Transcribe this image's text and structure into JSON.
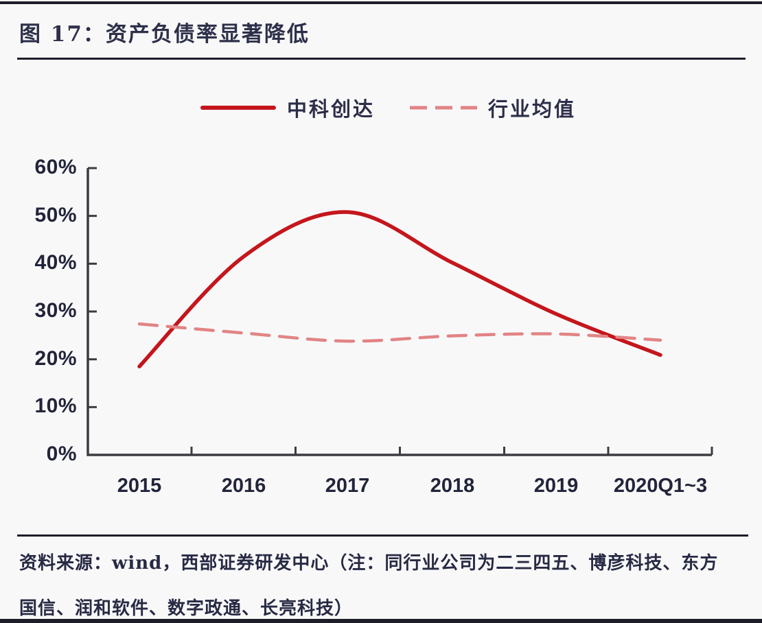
{
  "figure": {
    "title": "图 17：资产负债率显著降低",
    "source_line1": "资料来源：wind，西部证券研发中心（注：同行业公司为二三四五、博彦科技、东方",
    "source_line2": "国信、润和软件、数字政通、长亮科技）"
  },
  "chart_data": {
    "type": "line",
    "categories": [
      "2015",
      "2016",
      "2017",
      "2018",
      "2019",
      "2020Q1~3"
    ],
    "series": [
      {
        "name": "中科创达",
        "style": "solid",
        "color": "#c4161c",
        "values": [
          18.5,
          41.5,
          50.8,
          40.2,
          29.5,
          20.9
        ]
      },
      {
        "name": "行业均值",
        "style": "dashed",
        "color": "#e28484",
        "values": [
          27.4,
          25.5,
          23.8,
          24.9,
          25.3,
          24.0
        ]
      }
    ],
    "title": "",
    "xlabel": "",
    "ylabel": "",
    "ylim": [
      0,
      60
    ],
    "ytick_step": 10,
    "ytick_labels": [
      "0%",
      "10%",
      "20%",
      "30%",
      "40%",
      "50%",
      "60%"
    ],
    "grid": false,
    "legend_position": "top",
    "axis_color": "#3b3b42"
  }
}
